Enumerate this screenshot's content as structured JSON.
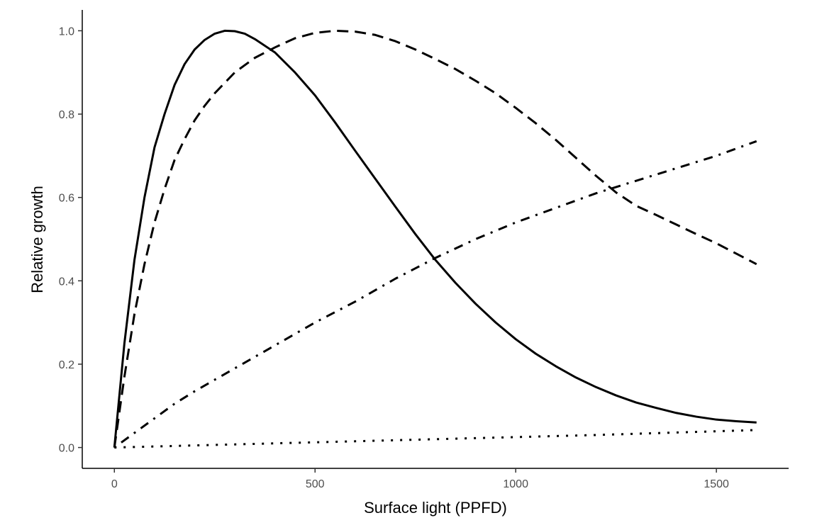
{
  "chart_data": {
    "type": "line",
    "xlabel": "Surface light (PPFD)",
    "ylabel": "Relative growth",
    "xlim": [
      -80,
      1680
    ],
    "ylim": [
      -0.05,
      1.05
    ],
    "x_ticks": [
      0,
      500,
      1000,
      1500
    ],
    "y_ticks": [
      0.0,
      0.2,
      0.4,
      0.6,
      0.8,
      1.0
    ],
    "x_tick_labels": [
      "0",
      "500",
      "1000",
      "1500"
    ],
    "y_tick_labels": [
      "0.0",
      "0.2",
      "0.4",
      "0.6",
      "0.8",
      "1.0"
    ],
    "grid": false,
    "legend": "none",
    "series": [
      {
        "linestyle": "solid",
        "x": [
          0,
          25,
          50,
          75,
          100,
          125,
          150,
          175,
          200,
          225,
          250,
          275,
          300,
          325,
          350,
          400,
          450,
          500,
          550,
          600,
          650,
          700,
          750,
          800,
          850,
          900,
          950,
          1000,
          1050,
          1100,
          1150,
          1200,
          1250,
          1300,
          1350,
          1400,
          1450,
          1500,
          1550,
          1600
        ],
        "y": [
          0.0,
          0.25,
          0.45,
          0.6,
          0.72,
          0.8,
          0.87,
          0.92,
          0.955,
          0.978,
          0.993,
          1.0,
          0.999,
          0.993,
          0.98,
          0.948,
          0.9,
          0.845,
          0.78,
          0.712,
          0.645,
          0.578,
          0.512,
          0.45,
          0.395,
          0.345,
          0.3,
          0.26,
          0.225,
          0.195,
          0.168,
          0.145,
          0.125,
          0.108,
          0.095,
          0.083,
          0.074,
          0.067,
          0.063,
          0.06
        ]
      },
      {
        "linestyle": "dashed",
        "x": [
          0,
          25,
          50,
          75,
          100,
          125,
          150,
          175,
          200,
          225,
          250,
          275,
          300,
          350,
          400,
          450,
          500,
          550,
          600,
          650,
          700,
          750,
          800,
          850,
          900,
          950,
          1000,
          1050,
          1100,
          1150,
          1200,
          1250,
          1300,
          1350,
          1400,
          1450,
          1500,
          1550,
          1600
        ],
        "y": [
          0.0,
          0.17,
          0.32,
          0.44,
          0.54,
          0.62,
          0.69,
          0.74,
          0.785,
          0.82,
          0.85,
          0.875,
          0.9,
          0.935,
          0.96,
          0.982,
          0.995,
          1.0,
          0.998,
          0.99,
          0.975,
          0.955,
          0.932,
          0.908,
          0.88,
          0.85,
          0.815,
          0.778,
          0.738,
          0.695,
          0.652,
          0.612,
          0.58,
          0.558,
          0.535,
          0.512,
          0.49,
          0.465,
          0.44
        ]
      },
      {
        "linestyle": "dotdash",
        "x": [
          0,
          50,
          100,
          150,
          200,
          300,
          400,
          500,
          600,
          700,
          800,
          900,
          1000,
          1100,
          1200,
          1300,
          1400,
          1500,
          1600
        ],
        "y": [
          0.0,
          0.035,
          0.07,
          0.105,
          0.135,
          0.19,
          0.245,
          0.3,
          0.35,
          0.405,
          0.455,
          0.5,
          0.54,
          0.575,
          0.61,
          0.64,
          0.67,
          0.7,
          0.735
        ]
      },
      {
        "linestyle": "dotted",
        "x": [
          0,
          200,
          400,
          600,
          800,
          1000,
          1200,
          1400,
          1600
        ],
        "y": [
          0.0,
          0.005,
          0.01,
          0.015,
          0.02,
          0.025,
          0.03,
          0.036,
          0.042
        ]
      }
    ]
  }
}
